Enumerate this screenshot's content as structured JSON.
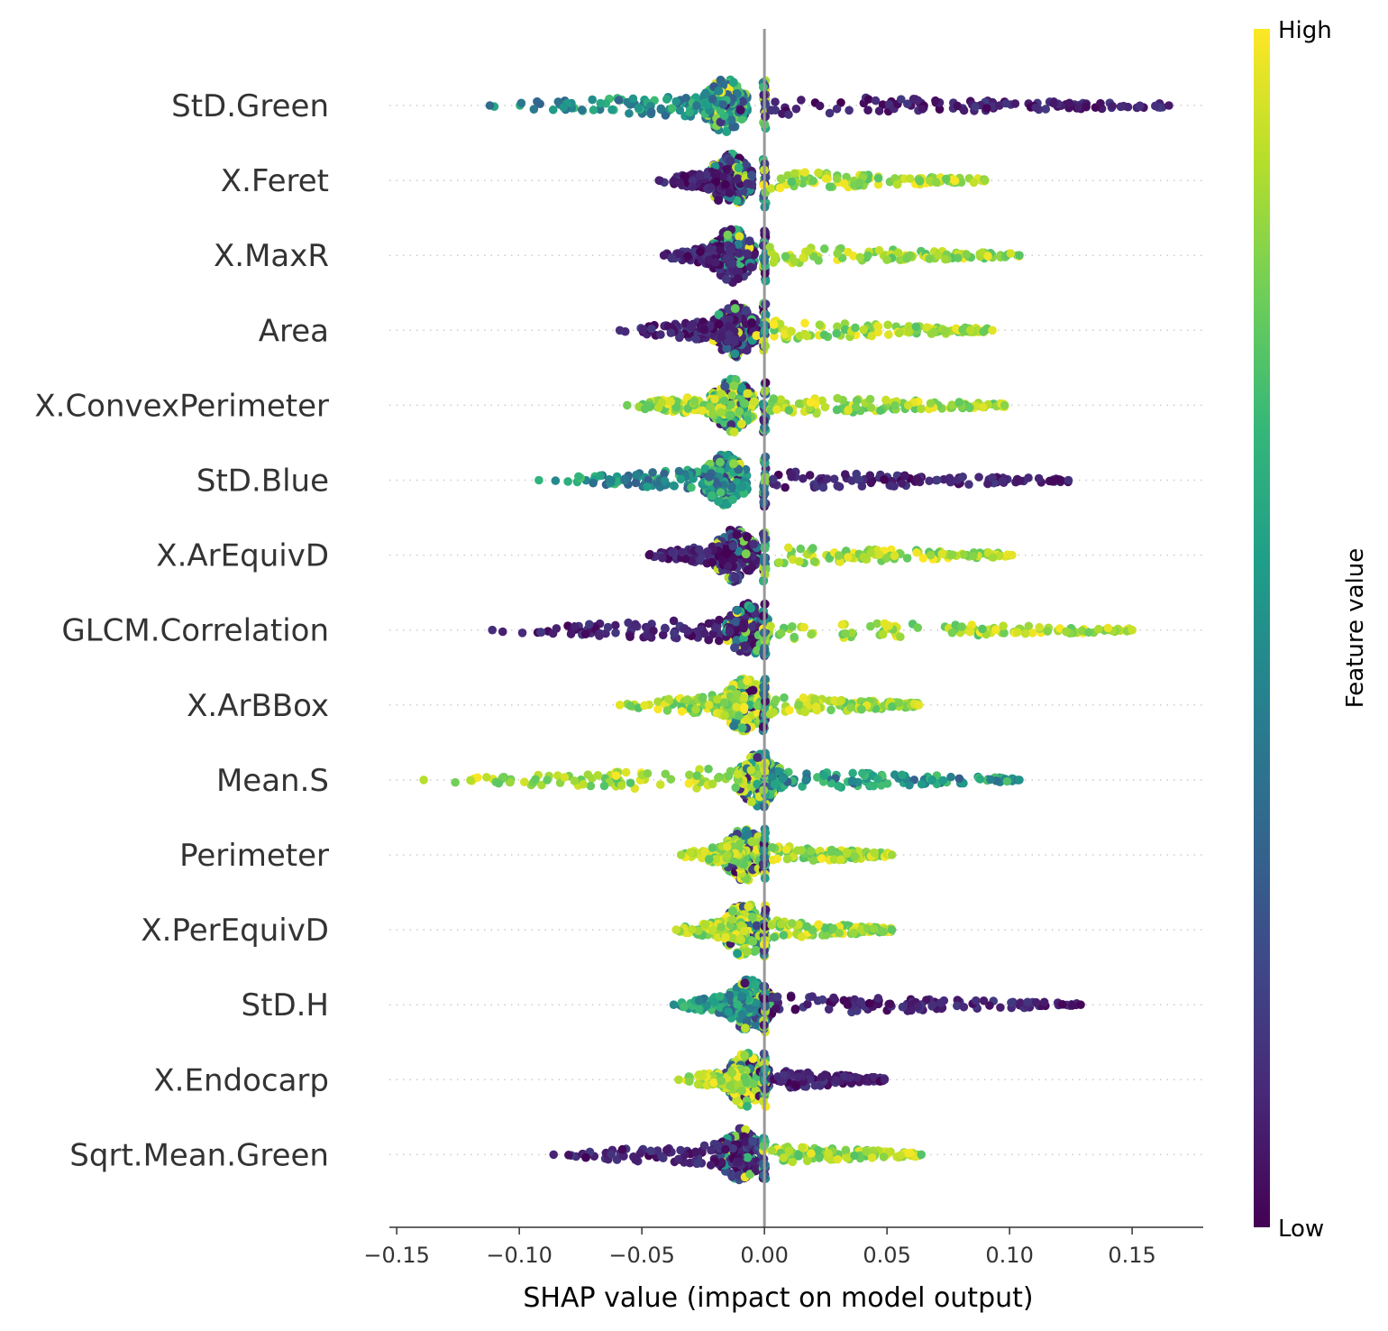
{
  "chart_data": {
    "type": "scatter",
    "subtype": "shap-beeswarm",
    "xlabel": "SHAP value (impact on model output)",
    "xlim": [
      -0.153,
      0.179
    ],
    "x_ticks": [
      {
        "value": -0.15,
        "label": "−0.15"
      },
      {
        "value": -0.1,
        "label": "−0.10"
      },
      {
        "value": -0.05,
        "label": "−0.05"
      },
      {
        "value": 0.0,
        "label": "0.00"
      },
      {
        "value": 0.05,
        "label": "0.05"
      },
      {
        "value": 0.1,
        "label": "0.10"
      },
      {
        "value": 0.15,
        "label": "0.15"
      }
    ],
    "grid": false,
    "zero_line": true,
    "colorbar": {
      "title": "Feature value",
      "high_label": "High",
      "low_label": "Low",
      "colormap": "viridis",
      "colors": [
        "#440154",
        "#482878",
        "#3e4989",
        "#31688e",
        "#26828e",
        "#1f9e89",
        "#35b779",
        "#6ece58",
        "#b5de2b",
        "#fde725"
      ]
    },
    "features": [
      {
        "name": "StD.Green",
        "min": -0.112,
        "max": 0.165,
        "cluster_center": -0.016,
        "negative_side": "mid",
        "positive_side": "low"
      },
      {
        "name": "X.Feret",
        "min": -0.043,
        "max": 0.09,
        "cluster_center": -0.014,
        "negative_side": "low",
        "positive_side": "high"
      },
      {
        "name": "X.MaxR",
        "min": -0.041,
        "max": 0.104,
        "cluster_center": -0.013,
        "negative_side": "low",
        "positive_side": "high"
      },
      {
        "name": "Area",
        "min": -0.059,
        "max": 0.093,
        "cluster_center": -0.012,
        "negative_side": "low",
        "positive_side": "high"
      },
      {
        "name": "X.ConvexPerimeter",
        "min": -0.056,
        "max": 0.098,
        "cluster_center": -0.013,
        "negative_side": "high",
        "positive_side": "high"
      },
      {
        "name": "StD.Blue",
        "min": -0.092,
        "max": 0.124,
        "cluster_center": -0.016,
        "negative_side": "mid",
        "positive_side": "low"
      },
      {
        "name": "X.ArEquivD",
        "min": -0.047,
        "max": 0.101,
        "cluster_center": -0.012,
        "negative_side": "low",
        "positive_side": "high"
      },
      {
        "name": "GLCM.Correlation",
        "min": -0.111,
        "max": 0.15,
        "cluster_center": -0.007,
        "negative_side": "low",
        "positive_side": "high"
      },
      {
        "name": "X.ArBBox",
        "min": -0.059,
        "max": 0.063,
        "cluster_center": -0.008,
        "negative_side": "high",
        "positive_side": "high"
      },
      {
        "name": "Mean.S",
        "min": -0.139,
        "max": 0.104,
        "cluster_center": -0.002,
        "negative_side": "high",
        "positive_side": "mid"
      },
      {
        "name": "Perimeter",
        "min": -0.034,
        "max": 0.052,
        "cluster_center": -0.008,
        "negative_side": "high",
        "positive_side": "high"
      },
      {
        "name": "X.PerEquivD",
        "min": -0.036,
        "max": 0.052,
        "cluster_center": -0.008,
        "negative_side": "high",
        "positive_side": "high"
      },
      {
        "name": "StD.H",
        "min": -0.037,
        "max": 0.129,
        "cluster_center": -0.006,
        "negative_side": "mid",
        "positive_side": "low"
      },
      {
        "name": "X.Endocarp",
        "min": -0.035,
        "max": 0.049,
        "cluster_center": -0.007,
        "negative_side": "high",
        "positive_side": "low"
      },
      {
        "name": "Sqrt.Mean.Green",
        "min": -0.086,
        "max": 0.064,
        "cluster_center": -0.01,
        "negative_side": "low",
        "positive_side": "high"
      }
    ]
  }
}
